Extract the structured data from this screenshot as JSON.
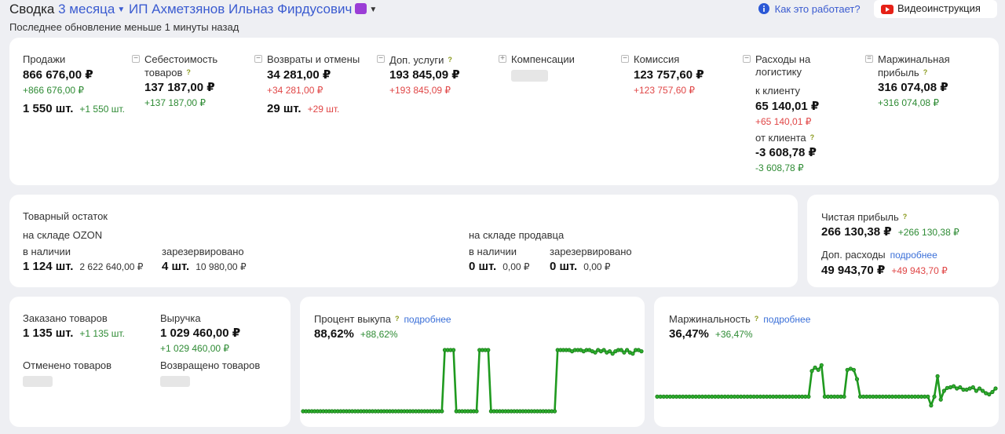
{
  "header": {
    "title_prefix": "Сводка",
    "period": "3 месяца",
    "seller": "ИП Ахметзянов Ильназ Фирдусович",
    "updated": "Последнее обновление меньше 1 минуты назад",
    "how_it_works": "Как это работает?",
    "video": "Видеоинструкция"
  },
  "summary": {
    "sales": {
      "label": "Продажи",
      "value": "866 676,00 ₽",
      "delta": "+866 676,00 ₽",
      "qty": "1 550 шт.",
      "qty_delta": "+1 550 шт."
    },
    "cost": {
      "label": "Себестоимость",
      "label2": "товаров",
      "value": "137 187,00 ₽",
      "delta": "+137 187,00 ₽"
    },
    "returns": {
      "label": "Возвраты и отмены",
      "value": "34 281,00 ₽",
      "delta": "+34 281,00 ₽",
      "qty": "29 шт.",
      "qty_delta": "+29 шт."
    },
    "services": {
      "label": "Доп. услуги",
      "value": "193 845,09 ₽",
      "delta": "+193 845,09 ₽"
    },
    "compensation": {
      "label": "Компенсации"
    },
    "commission": {
      "label": "Комиссия",
      "value": "123 757,60 ₽",
      "delta": "+123 757,60 ₽"
    },
    "logistics": {
      "label": "Расходы на",
      "label2": "логистику",
      "to_label": "к клиенту",
      "to_value": "65 140,01 ₽",
      "to_delta": "+65 140,01 ₽",
      "from_label": "от клиента",
      "from_value": "-3 608,78 ₽",
      "from_delta": "-3 608,78 ₽"
    },
    "margin": {
      "label": "Маржинальная",
      "label2": "прибыль",
      "value": "316 074,08 ₽",
      "delta": "+316 074,08 ₽"
    }
  },
  "stock": {
    "title": "Товарный остаток",
    "ozon": {
      "label": "на складе OZON",
      "available_label": "в наличии",
      "available_qty": "1 124 шт.",
      "available_sum": "2 622 640,00 ₽",
      "reserved_label": "зарезервировано",
      "reserved_qty": "4 шт.",
      "reserved_sum": "10 980,00 ₽"
    },
    "seller": {
      "label": "на складе продавца",
      "available_label": "в наличии",
      "available_qty": "0 шт.",
      "available_sum": "0,00 ₽",
      "reserved_label": "зарезервировано",
      "reserved_qty": "0 шт.",
      "reserved_sum": "0,00 ₽"
    }
  },
  "profit": {
    "net_label": "Чистая прибыль",
    "net_value": "266 130,38 ₽",
    "net_delta": "+266 130,38 ₽",
    "extra_label": "Доп. расходы",
    "extra_link": "подробнее",
    "extra_value": "49 943,70 ₽",
    "extra_delta": "+49 943,70 ₽"
  },
  "orders": {
    "ordered_label": "Заказано товаров",
    "ordered_value": "1 135 шт.",
    "ordered_delta": "+1 135 шт.",
    "revenue_label": "Выручка",
    "revenue_value": "1 029 460,00 ₽",
    "revenue_delta": "+1 029 460,00 ₽",
    "cancelled_label": "Отменено товаров",
    "returned_label": "Возвращено товаров"
  },
  "buyout": {
    "label": "Процент выкупа",
    "link": "подробнее",
    "value": "88,62%",
    "delta": "+88,62%"
  },
  "marginality": {
    "label": "Маржинальность",
    "link": "подробнее",
    "value": "36,47%",
    "delta": "+36,47%"
  },
  "colors": {
    "positive": "#2e8b34",
    "negative": "#e04646",
    "line": "#1f9a1f",
    "link": "#3a6fd8"
  },
  "chart_data": [
    {
      "type": "line",
      "series": [
        {
          "values": [
            0,
            0,
            0,
            0,
            0,
            0,
            0,
            0,
            0,
            0,
            0,
            0,
            0,
            0,
            0,
            0,
            0,
            0,
            0,
            0,
            0,
            0,
            0,
            0,
            0,
            0,
            0,
            0,
            0,
            0,
            0,
            0,
            0,
            0,
            0,
            0,
            0,
            0,
            0,
            0,
            0,
            0,
            0,
            0,
            0,
            0,
            0,
            0,
            0,
            100,
            100,
            100,
            100,
            0,
            0,
            0,
            0,
            0,
            0,
            0,
            0,
            100,
            100,
            100,
            100,
            0,
            0,
            0,
            0,
            0,
            0,
            0,
            0,
            0,
            0,
            0,
            0,
            0,
            0,
            0,
            0,
            0,
            0,
            0,
            0,
            0,
            0,
            0,
            100,
            100,
            100,
            100,
            100,
            98,
            100,
            100,
            100,
            98,
            100,
            100,
            98,
            96,
            100,
            98,
            100,
            96,
            98,
            94,
            98,
            100,
            100,
            96,
            100,
            96,
            94,
            100,
            100,
            98
          ]
        }
      ],
      "ylim": [
        0,
        100
      ]
    },
    {
      "type": "line",
      "series": [
        {
          "values": [
            0,
            0,
            0,
            0,
            0,
            0,
            0,
            0,
            0,
            0,
            0,
            0,
            0,
            0,
            0,
            0,
            0,
            0,
            0,
            0,
            0,
            0,
            0,
            0,
            0,
            0,
            0,
            0,
            0,
            0,
            0,
            0,
            0,
            0,
            0,
            0,
            0,
            0,
            0,
            0,
            0,
            0,
            0,
            0,
            0,
            0,
            0,
            0,
            44,
            50,
            46,
            54,
            0,
            0,
            0,
            0,
            0,
            0,
            0,
            46,
            48,
            46,
            30,
            0,
            0,
            0,
            0,
            0,
            0,
            0,
            0,
            0,
            0,
            0,
            0,
            0,
            0,
            0,
            0,
            0,
            0,
            0,
            0,
            0,
            0,
            -15,
            0,
            35,
            -5,
            10,
            15,
            16,
            18,
            14,
            16,
            12,
            12,
            14,
            16,
            10,
            14,
            10,
            6,
            4,
            8,
            14
          ]
        }
      ],
      "ylim": [
        -25,
        80
      ]
    }
  ]
}
